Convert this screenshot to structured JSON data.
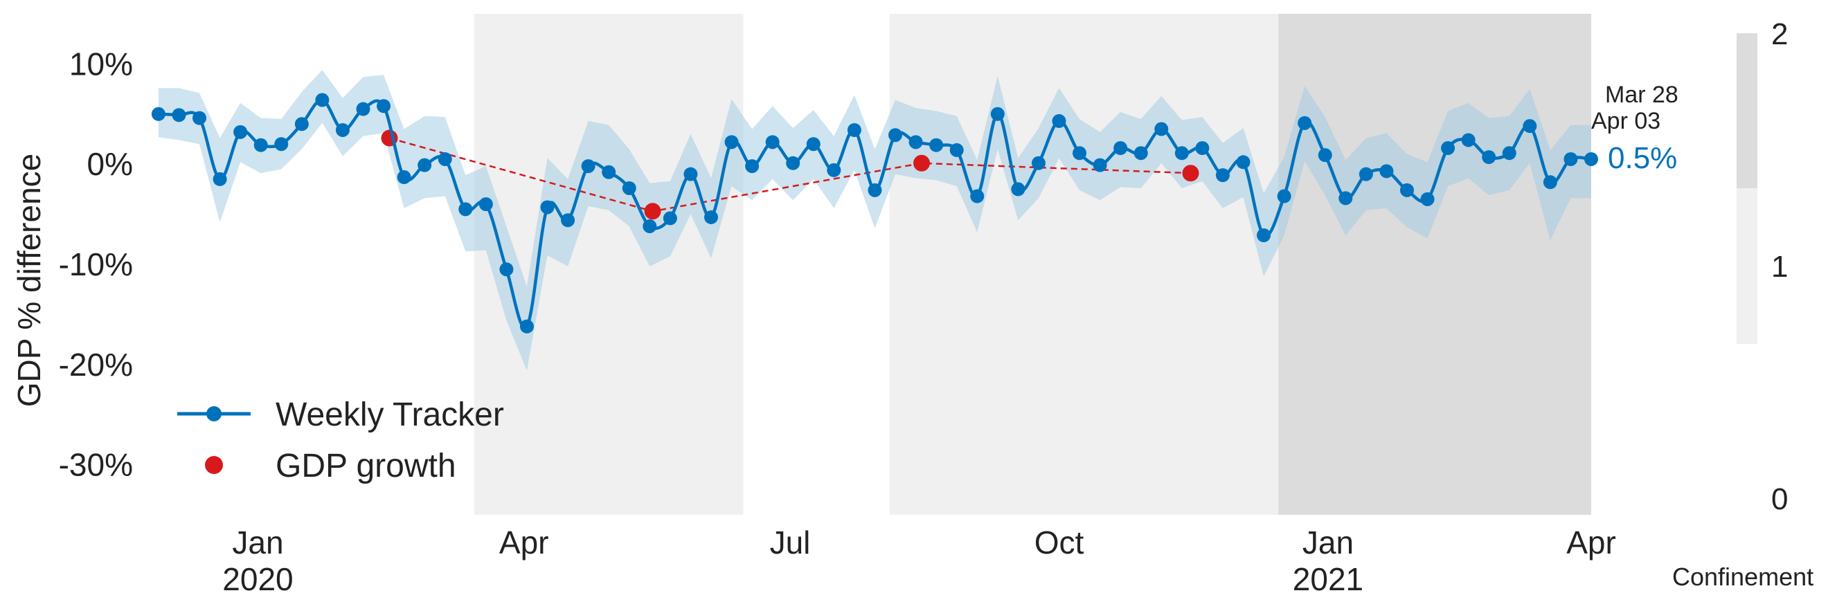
{
  "chart_data": {
    "type": "line",
    "ylabel": "GDP % difference",
    "xlim": [
      "2019-11-24",
      "2021-04-01"
    ],
    "ylim": [
      -35,
      15
    ],
    "yticks": [
      {
        "value": 10,
        "label": "10%"
      },
      {
        "value": 0,
        "label": "0%"
      },
      {
        "value": -10,
        "label": "-10%"
      },
      {
        "value": -20,
        "label": "-20%"
      },
      {
        "value": -30,
        "label": "-30%"
      }
    ],
    "xticks": [
      {
        "date": "2020-01-01",
        "label": "Jan",
        "sublabel": "2020"
      },
      {
        "date": "2020-04-01",
        "label": "Apr",
        "sublabel": ""
      },
      {
        "date": "2020-07-01",
        "label": "Jul",
        "sublabel": ""
      },
      {
        "date": "2020-10-01",
        "label": "Oct",
        "sublabel": ""
      },
      {
        "date": "2021-01-01",
        "label": "Jan",
        "sublabel": "2021"
      },
      {
        "date": "2021-04-01",
        "label": "Apr",
        "sublabel": ""
      }
    ],
    "grid": false,
    "legend_position": "lower-left",
    "colors": {
      "tracker": "#0072bd",
      "band": "#9ecae1",
      "gdp": "#d7191c",
      "confinement_1": "#f0f0f0",
      "confinement_2": "#dcdcdc"
    },
    "confinement_periods": [
      {
        "start": "2020-03-15",
        "end": "2020-06-15",
        "level": 1
      },
      {
        "start": "2020-08-04",
        "end": "2020-12-15",
        "level": 1
      },
      {
        "start": "2020-12-15",
        "end": "2021-04-01",
        "level": 2
      }
    ],
    "series": [
      {
        "name": "Weekly Tracker",
        "style": "line-marker",
        "x": [
          "2019-11-28",
          "2019-12-05",
          "2019-12-12",
          "2019-12-19",
          "2019-12-26",
          "2020-01-02",
          "2020-01-09",
          "2020-01-16",
          "2020-01-23",
          "2020-01-30",
          "2020-02-06",
          "2020-02-13",
          "2020-02-20",
          "2020-02-27",
          "2020-03-05",
          "2020-03-12",
          "2020-03-19",
          "2020-03-26",
          "2020-04-02",
          "2020-04-09",
          "2020-04-16",
          "2020-04-23",
          "2020-04-30",
          "2020-05-07",
          "2020-05-14",
          "2020-05-21",
          "2020-05-28",
          "2020-06-04",
          "2020-06-11",
          "2020-06-18",
          "2020-06-25",
          "2020-07-02",
          "2020-07-09",
          "2020-07-16",
          "2020-07-23",
          "2020-07-30",
          "2020-08-06",
          "2020-08-13",
          "2020-08-20",
          "2020-08-27",
          "2020-09-03",
          "2020-09-10",
          "2020-09-17",
          "2020-09-24",
          "2020-10-01",
          "2020-10-08",
          "2020-10-15",
          "2020-10-22",
          "2020-10-29",
          "2020-11-05",
          "2020-11-12",
          "2020-11-19",
          "2020-11-26",
          "2020-12-03",
          "2020-12-10",
          "2020-12-17",
          "2020-12-24",
          "2020-12-31",
          "2021-01-07",
          "2021-01-14",
          "2021-01-21",
          "2021-01-28",
          "2021-02-04",
          "2021-02-11",
          "2021-02-18",
          "2021-02-25",
          "2021-03-04",
          "2021-03-11",
          "2021-03-18",
          "2021-03-25",
          "2021-04-01"
        ],
        "values": [
          5.0,
          4.9,
          4.6,
          -1.5,
          3.2,
          1.9,
          2.0,
          4.0,
          6.4,
          3.4,
          5.5,
          5.8,
          -1.3,
          -0.1,
          0.5,
          -4.5,
          -4.0,
          -10.5,
          -16.2,
          -4.3,
          -5.6,
          -0.2,
          -0.8,
          -2.4,
          -6.2,
          -5.4,
          -1.0,
          -5.3,
          2.2,
          -0.2,
          2.2,
          0.1,
          2.0,
          -0.6,
          3.4,
          -2.6,
          2.9,
          2.2,
          1.9,
          1.4,
          -3.2,
          5.0,
          -2.5,
          0.1,
          4.3,
          1.1,
          -0.1,
          1.6,
          1.1,
          3.5,
          1.1,
          1.6,
          -1.1,
          0.2,
          -7.1,
          -3.2,
          4.1,
          0.9,
          -3.4,
          -1.0,
          -0.7,
          -2.6,
          -3.5,
          1.6,
          2.4,
          0.7,
          1.1,
          3.8,
          -1.8,
          0.5,
          0.5
        ],
        "lower": [
          2.7,
          2.4,
          2.0,
          -5.8,
          0.2,
          -0.9,
          -0.5,
          1.5,
          4.1,
          0.8,
          2.8,
          3.1,
          -4.4,
          -3.4,
          -3.2,
          -8.7,
          -8.6,
          -15.6,
          -20.6,
          -9.1,
          -10.2,
          -4.2,
          -4.6,
          -6.2,
          -10.2,
          -9.2,
          -5.0,
          -9.4,
          -2.2,
          -3.6,
          -1.5,
          -3.6,
          -1.5,
          -4.4,
          -0.6,
          -6.4,
          -1.0,
          -1.4,
          -1.6,
          -2.2,
          -6.8,
          1.5,
          -5.6,
          -3.4,
          0.6,
          -2.6,
          -3.6,
          -2.3,
          -2.4,
          0.1,
          -2.4,
          -1.7,
          -4.4,
          -3.3,
          -11.2,
          -7.1,
          0.3,
          -3.1,
          -7.1,
          -4.6,
          -4.4,
          -6.3,
          -7.4,
          -2.2,
          -1.4,
          -3.1,
          -2.6,
          0.1,
          -7.6,
          -3.4,
          -3.4
        ],
        "upper": [
          7.6,
          7.6,
          7.1,
          2.6,
          6.1,
          4.6,
          4.5,
          7.2,
          9.4,
          6.6,
          8.7,
          8.9,
          3.5,
          4.8,
          4.7,
          -1.1,
          -0.2,
          -6.2,
          -12.2,
          0.6,
          -1.5,
          4.3,
          3.9,
          1.5,
          -1.9,
          -1.7,
          3.0,
          -1.4,
          6.5,
          3.5,
          5.8,
          3.6,
          5.4,
          2.8,
          6.9,
          1.5,
          6.4,
          5.6,
          5.3,
          4.8,
          0.4,
          8.8,
          0.6,
          3.6,
          7.6,
          4.5,
          3.2,
          5.2,
          4.5,
          6.8,
          4.4,
          4.7,
          2.1,
          3.6,
          -2.9,
          0.7,
          7.8,
          4.7,
          0.4,
          2.6,
          3.1,
          1.0,
          0.2,
          5.3,
          6.1,
          4.6,
          4.8,
          7.5,
          1.4,
          3.9,
          3.9
        ]
      },
      {
        "name": "GDP growth",
        "style": "marker",
        "x": [
          "2020-02-15",
          "2020-05-15",
          "2020-08-15",
          "2020-11-15"
        ],
        "values": [
          2.6,
          -4.7,
          0.1,
          -0.9
        ]
      }
    ],
    "annotations": {
      "date_top": "Mar 28",
      "date_bottom": "Apr 03",
      "last_value": "0.5%"
    },
    "colorbar": {
      "label": "Confinement",
      "ticks": [
        "0",
        "1",
        "2"
      ],
      "range": [
        0,
        2
      ]
    }
  }
}
